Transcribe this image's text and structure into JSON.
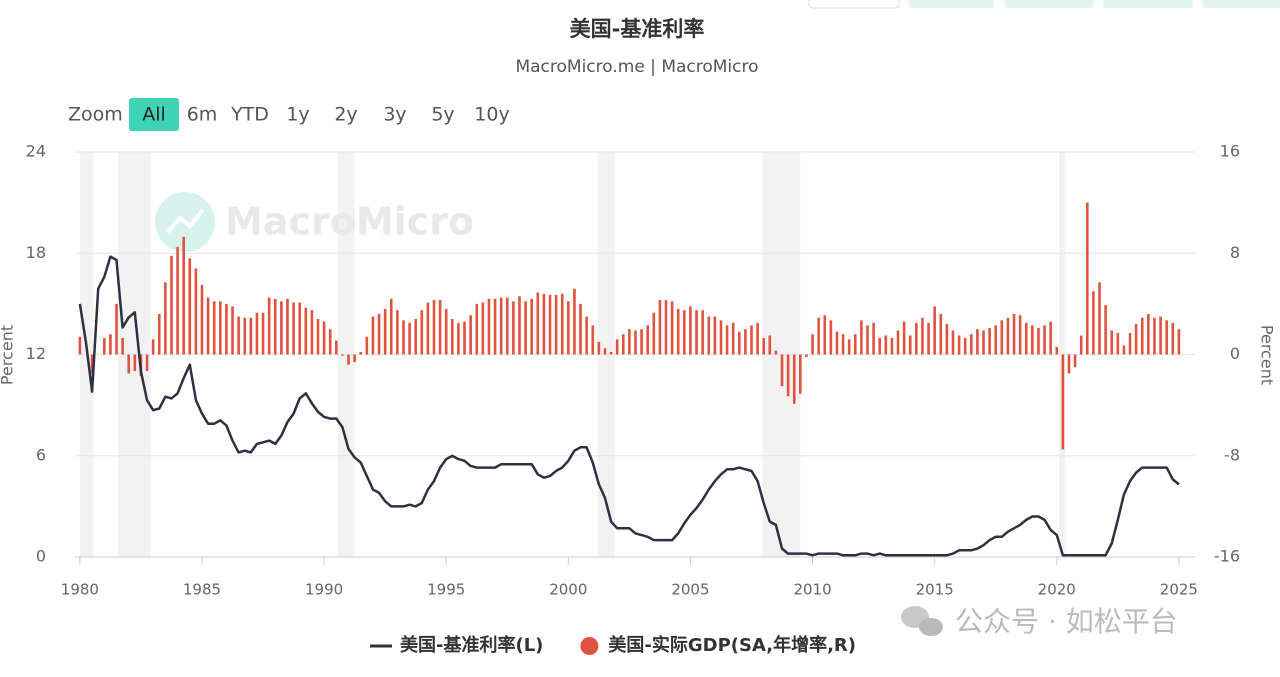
{
  "chart_data": {
    "type": "line",
    "title": "美国-基准利率",
    "subtitle": "MacroMicro.me | MacroMicro",
    "zoom_label": "Zoom",
    "zoom_buttons": [
      "All",
      "6m",
      "YTD",
      "1y",
      "2y",
      "3y",
      "5y",
      "10y"
    ],
    "zoom_selected": "All",
    "watermark": "MacroMicro",
    "ylabel": "Percent",
    "y2label": "Percent",
    "grid": true,
    "recession_color": "#f2f2f2",
    "recessions": [
      [
        1980.0,
        1980.55
      ],
      [
        1981.55,
        1982.9
      ],
      [
        1990.55,
        1991.25
      ],
      [
        2001.2,
        2001.9
      ],
      [
        2007.95,
        2009.5
      ],
      [
        2020.1,
        2020.35
      ]
    ],
    "xlim": [
      1979.8,
      2025.66
    ],
    "xticks": [
      1980,
      1985,
      1990,
      1995,
      2000,
      2005,
      2010,
      2015,
      2020,
      2025
    ],
    "ylim": [
      0,
      24
    ],
    "yticks": [
      0,
      6,
      12,
      18,
      24
    ],
    "y2lim": [
      -16,
      16
    ],
    "y2ticks": [
      -16,
      -8,
      0,
      8,
      16
    ],
    "x": [
      1980,
      1980.25,
      1980.5,
      1980.75,
      1981,
      1981.25,
      1981.5,
      1981.75,
      1982,
      1982.25,
      1982.5,
      1982.75,
      1983,
      1983.25,
      1983.5,
      1983.75,
      1984,
      1984.25,
      1984.5,
      1984.75,
      1985,
      1985.25,
      1985.5,
      1985.75,
      1986,
      1986.25,
      1986.5,
      1986.75,
      1987,
      1987.25,
      1987.5,
      1987.75,
      1988,
      1988.25,
      1988.5,
      1988.75,
      1989,
      1989.25,
      1989.5,
      1989.75,
      1990,
      1990.25,
      1990.5,
      1990.75,
      1991,
      1991.25,
      1991.5,
      1991.75,
      1992,
      1992.25,
      1992.5,
      1992.75,
      1993,
      1993.25,
      1993.5,
      1993.75,
      1994,
      1994.25,
      1994.5,
      1994.75,
      1995,
      1995.25,
      1995.5,
      1995.75,
      1996,
      1996.25,
      1996.5,
      1996.75,
      1997,
      1997.25,
      1997.5,
      1997.75,
      1998,
      1998.25,
      1998.5,
      1998.75,
      1999,
      1999.25,
      1999.5,
      1999.75,
      2000,
      2000.25,
      2000.5,
      2000.75,
      2001,
      2001.25,
      2001.5,
      2001.75,
      2002,
      2002.25,
      2002.5,
      2002.75,
      2003,
      2003.25,
      2003.5,
      2003.75,
      2004,
      2004.25,
      2004.5,
      2004.75,
      2005,
      2005.25,
      2005.5,
      2005.75,
      2006,
      2006.25,
      2006.5,
      2006.75,
      2007,
      2007.25,
      2007.5,
      2007.75,
      2008,
      2008.25,
      2008.5,
      2008.75,
      2009,
      2009.25,
      2009.5,
      2009.75,
      2010,
      2010.25,
      2010.5,
      2010.75,
      2011,
      2011.25,
      2011.5,
      2011.75,
      2012,
      2012.25,
      2012.5,
      2012.75,
      2013,
      2013.25,
      2013.5,
      2013.75,
      2014,
      2014.25,
      2014.5,
      2014.75,
      2015,
      2015.25,
      2015.5,
      2015.75,
      2016,
      2016.25,
      2016.5,
      2016.75,
      2017,
      2017.25,
      2017.5,
      2017.75,
      2018,
      2018.25,
      2018.5,
      2018.75,
      2019,
      2019.25,
      2019.5,
      2019.75,
      2020,
      2020.25,
      2020.5,
      2020.75,
      2021,
      2021.25,
      2021.5,
      2021.75,
      2022,
      2022.25,
      2022.5,
      2022.75,
      2023,
      2023.25,
      2023.5,
      2023.75,
      2024,
      2024.25,
      2024.5,
      2024.75,
      2025
    ],
    "series": [
      {
        "name": "美国-基准利率(L)",
        "color": "#2e3142",
        "type": "line",
        "values": [
          15.0,
          12.7,
          9.8,
          15.9,
          16.6,
          17.8,
          17.6,
          13.6,
          14.2,
          14.5,
          11.0,
          9.3,
          8.7,
          8.8,
          9.5,
          9.4,
          9.7,
          10.6,
          11.4,
          9.3,
          8.5,
          7.9,
          7.9,
          8.1,
          7.8,
          6.9,
          6.2,
          6.3,
          6.2,
          6.7,
          6.8,
          6.9,
          6.7,
          7.2,
          8.0,
          8.5,
          9.4,
          9.7,
          9.1,
          8.6,
          8.3,
          8.2,
          8.2,
          7.7,
          6.4,
          5.9,
          5.6,
          4.8,
          4.0,
          3.8,
          3.3,
          3.0,
          3.0,
          3.0,
          3.1,
          3.0,
          3.2,
          4.0,
          4.5,
          5.3,
          5.8,
          6.0,
          5.8,
          5.7,
          5.4,
          5.3,
          5.3,
          5.3,
          5.3,
          5.5,
          5.5,
          5.5,
          5.5,
          5.5,
          5.5,
          4.9,
          4.7,
          4.8,
          5.1,
          5.3,
          5.7,
          6.3,
          6.5,
          6.5,
          5.6,
          4.3,
          3.5,
          2.1,
          1.7,
          1.7,
          1.7,
          1.4,
          1.3,
          1.2,
          1.0,
          1.0,
          1.0,
          1.0,
          1.4,
          2.0,
          2.5,
          2.9,
          3.4,
          4.0,
          4.5,
          4.9,
          5.2,
          5.2,
          5.3,
          5.2,
          5.1,
          4.5,
          3.2,
          2.1,
          1.9,
          0.5,
          0.2,
          0.2,
          0.2,
          0.2,
          0.1,
          0.2,
          0.2,
          0.2,
          0.2,
          0.1,
          0.1,
          0.1,
          0.2,
          0.2,
          0.1,
          0.2,
          0.1,
          0.1,
          0.1,
          0.1,
          0.1,
          0.1,
          0.1,
          0.1,
          0.1,
          0.1,
          0.1,
          0.2,
          0.4,
          0.4,
          0.4,
          0.5,
          0.7,
          1.0,
          1.2,
          1.2,
          1.5,
          1.7,
          1.9,
          2.2,
          2.4,
          2.4,
          2.2,
          1.6,
          1.3,
          0.1,
          0.1,
          0.1,
          0.1,
          0.1,
          0.1,
          0.1,
          0.1,
          0.8,
          2.2,
          3.7,
          4.5,
          5.0,
          5.3,
          5.3,
          5.3,
          5.3,
          5.3,
          4.6,
          4.3
        ]
      },
      {
        "name": "美国-实际GDP(SA,年增率,R)",
        "color": "#e0533e",
        "type": "bar",
        "axis": "y2",
        "values": [
          1.4,
          0.0,
          -1.5,
          -0.0,
          1.3,
          1.6,
          4.0,
          1.3,
          -1.5,
          -1.3,
          -1.7,
          -1.3,
          1.2,
          3.2,
          5.7,
          7.8,
          8.5,
          9.3,
          7.6,
          6.8,
          5.5,
          4.5,
          4.2,
          4.2,
          4.0,
          3.8,
          3.0,
          2.9,
          2.9,
          3.3,
          3.3,
          4.5,
          4.4,
          4.2,
          4.4,
          4.1,
          4.1,
          3.7,
          3.5,
          2.8,
          2.6,
          2.0,
          1.1,
          -0.1,
          -0.8,
          -0.6,
          0.2,
          1.4,
          3.0,
          3.2,
          3.6,
          4.4,
          3.5,
          2.7,
          2.5,
          2.8,
          3.5,
          4.1,
          4.3,
          4.3,
          3.6,
          2.8,
          2.5,
          2.6,
          3.1,
          4.0,
          4.1,
          4.4,
          4.4,
          4.5,
          4.5,
          4.2,
          4.6,
          4.2,
          4.4,
          4.9,
          4.8,
          4.7,
          4.7,
          4.8,
          4.2,
          5.2,
          4.0,
          3.0,
          2.3,
          1.0,
          0.5,
          0.2,
          1.2,
          1.6,
          2.0,
          1.9,
          2.0,
          2.3,
          3.3,
          4.3,
          4.3,
          4.2,
          3.6,
          3.5,
          3.8,
          3.5,
          3.5,
          3.0,
          3.0,
          2.7,
          2.3,
          2.5,
          1.8,
          2.0,
          2.3,
          2.5,
          1.3,
          1.5,
          0.3,
          -2.5,
          -3.3,
          -3.9,
          -3.1,
          -0.2,
          1.6,
          2.9,
          3.1,
          2.7,
          1.8,
          1.6,
          1.2,
          1.6,
          2.7,
          2.3,
          2.5,
          1.3,
          1.5,
          1.3,
          1.9,
          2.6,
          1.5,
          2.5,
          2.9,
          2.5,
          3.8,
          3.2,
          2.4,
          1.9,
          1.5,
          1.3,
          1.6,
          2.0,
          1.9,
          2.1,
          2.3,
          2.7,
          2.9,
          3.2,
          3.1,
          2.5,
          2.3,
          2.1,
          2.3,
          2.6,
          0.6,
          -7.5,
          -1.5,
          -1.0,
          1.5,
          12.0,
          5.0,
          5.7,
          3.9,
          1.9,
          1.7,
          0.7,
          1.7,
          2.4,
          2.9,
          3.2,
          2.9,
          3.0,
          2.7,
          2.5,
          2.0
        ]
      }
    ]
  },
  "overlay_text": "公众号 · 如松平台"
}
